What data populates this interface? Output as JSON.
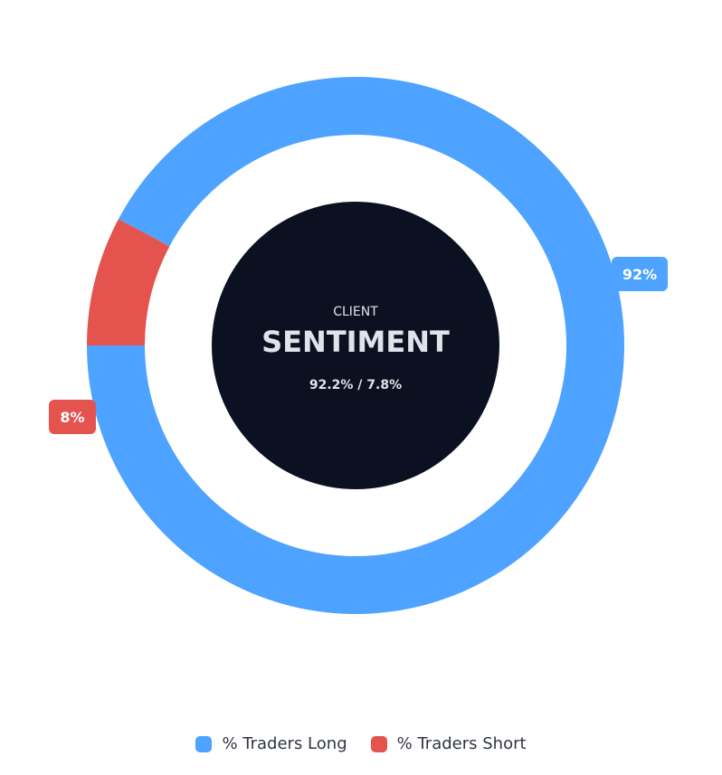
{
  "chart_data": {
    "type": "pie",
    "categories": [
      "% Traders Long",
      "% Traders Short"
    ],
    "values": [
      92.2,
      7.8
    ],
    "slice_labels": [
      "92%",
      "8%"
    ],
    "colors": [
      "#4da3ff",
      "#e5534f"
    ],
    "center": {
      "subtitle": "CLIENT",
      "title": "SENTIMENT",
      "ratio": "92.2% / 7.8%",
      "background": "#0b1120"
    },
    "legend_position": "bottom"
  }
}
